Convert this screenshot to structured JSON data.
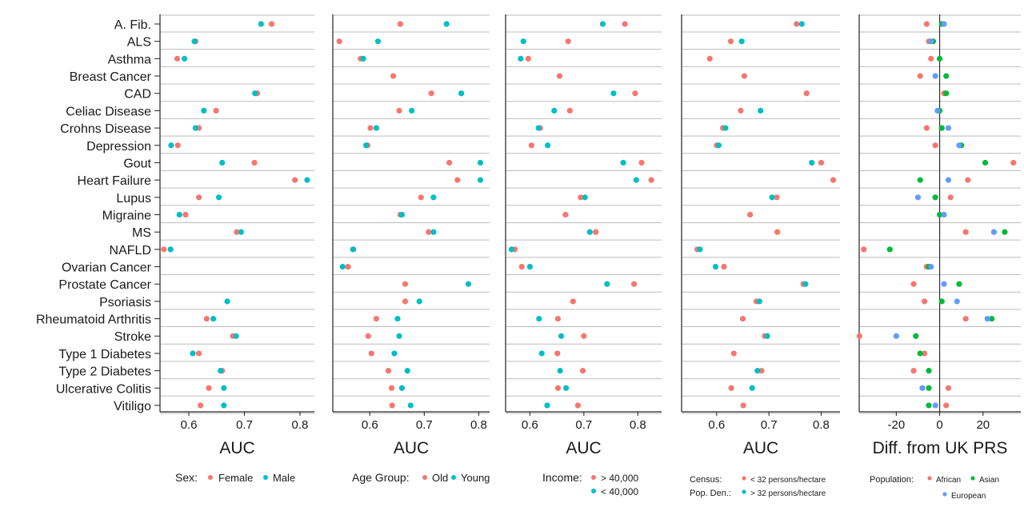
{
  "colors": {
    "red": "#F8766D",
    "teal": "#00BFC4",
    "green": "#00BA38",
    "blue": "#619CFF",
    "grid": "#bdbdbd",
    "axis": "#222222"
  },
  "conditions": [
    "A. Fib.",
    "ALS",
    "Asthma",
    "Breast Cancer",
    "CAD",
    "Celiac Disease",
    "Crohns Disease",
    "Depression",
    "Gout",
    "Heart Failure",
    "Lupus",
    "Migraine",
    "MS",
    "NAFLD",
    "Ovarian Cancer",
    "Prostate Cancer",
    "Psoriasis",
    "Rheumatoid Arthritis",
    "Stroke",
    "Type 1 Diabetes",
    "Type 2 Diabetes",
    "Ulcerative Colitis",
    "Vitiligo"
  ],
  "chart_data": [
    {
      "type": "scatter",
      "xlabel": "AUC",
      "xticks": [
        0.6,
        0.7,
        0.8
      ],
      "xlim": [
        0.548,
        0.826
      ],
      "legend_title": "Sex:",
      "series": [
        {
          "name": "Female",
          "color": "#F8766D",
          "values": [
            0.749,
            0.612,
            0.579,
            null,
            0.723,
            0.649,
            0.618,
            0.58,
            0.718,
            0.791,
            0.618,
            0.594,
            0.686,
            0.555,
            null,
            null,
            null,
            0.632,
            0.679,
            0.618,
            0.66,
            0.636,
            0.621
          ]
        },
        {
          "name": "Male",
          "color": "#00BFC4",
          "values": [
            0.73,
            0.61,
            0.592,
            null,
            0.719,
            0.627,
            0.612,
            0.568,
            0.66,
            0.813,
            0.654,
            0.583,
            0.694,
            0.567,
            null,
            null,
            0.669,
            0.644,
            0.685,
            0.607,
            0.657,
            0.663,
            0.663
          ]
        }
      ]
    },
    {
      "type": "scatter",
      "xlabel": "AUC",
      "xticks": [
        0.6,
        0.7,
        0.8
      ],
      "xlim": [
        0.532,
        0.82
      ],
      "legend_title": "Age Group:",
      "series": [
        {
          "name": "Old",
          "color": "#F8766D",
          "values": [
            0.656,
            0.544,
            0.583,
            0.643,
            0.713,
            0.654,
            0.601,
            0.596,
            0.746,
            0.761,
            0.694,
            0.656,
            0.708,
            0.57,
            0.56,
            0.665,
            0.665,
            0.612,
            0.597,
            0.603,
            0.634,
            0.64,
            0.641
          ]
        },
        {
          "name": "Young",
          "color": "#00BFC4",
          "values": [
            0.741,
            0.615,
            0.588,
            null,
            0.768,
            0.677,
            0.612,
            0.593,
            0.803,
            0.803,
            0.717,
            0.659,
            0.717,
            0.569,
            0.55,
            0.781,
            0.691,
            0.651,
            0.654,
            0.645,
            0.669,
            0.659,
            0.675
          ]
        }
      ]
    },
    {
      "type": "scatter",
      "xlabel": "AUC",
      "xticks": [
        0.6,
        0.7,
        0.8
      ],
      "xlim": [
        0.555,
        0.844
      ],
      "legend_title": "Income:",
      "series": [
        {
          "name": "> 40,000",
          "color": "#F8766D",
          "values": [
            0.776,
            0.671,
            0.597,
            0.655,
            0.795,
            0.674,
            0.619,
            0.603,
            0.807,
            0.825,
            0.694,
            0.666,
            0.722,
            0.572,
            0.585,
            0.793,
            0.68,
            0.652,
            0.7,
            0.651,
            0.698,
            0.652,
            0.689
          ]
        },
        {
          "name": "< 40,000",
          "color": "#00BFC4",
          "values": [
            0.735,
            0.588,
            0.583,
            null,
            0.755,
            0.645,
            0.616,
            0.633,
            0.773,
            0.797,
            0.702,
            null,
            0.711,
            0.566,
            0.6,
            0.743,
            null,
            0.617,
            0.658,
            0.622,
            0.656,
            0.667,
            0.632
          ]
        }
      ]
    },
    {
      "type": "scatter",
      "xlabel": "AUC",
      "xticks": [
        0.6,
        0.7,
        0.8
      ],
      "xlim": [
        0.533,
        0.836
      ],
      "legend_title": "Census: Pop. Den.:",
      "series": [
        {
          "name": "< 32 persons/hectare",
          "color": "#F8766D",
          "values": [
            0.753,
            0.627,
            0.587,
            0.653,
            0.772,
            0.646,
            0.612,
            0.6,
            0.8,
            0.823,
            0.715,
            0.664,
            0.716,
            0.563,
            0.614,
            0.766,
            0.676,
            0.65,
            0.692,
            0.633,
            0.686,
            0.628,
            0.651
          ]
        },
        {
          "name": "> 32 persons/hectare",
          "color": "#00BFC4",
          "values": [
            0.763,
            0.648,
            null,
            null,
            null,
            0.684,
            0.617,
            0.604,
            0.782,
            null,
            0.706,
            null,
            null,
            0.568,
            0.598,
            0.77,
            0.682,
            null,
            0.697,
            null,
            0.678,
            0.668,
            null
          ]
        }
      ]
    },
    {
      "type": "scatter",
      "xlabel": "Diff. from UK PRS",
      "xticks": [
        -20,
        0,
        20
      ],
      "xlim": [
        -37.1,
        37.4
      ],
      "reference_line": 0,
      "legend_title": "Population:",
      "series": [
        {
          "name": "African",
          "color": "#F8766D",
          "values": [
            -6,
            -5,
            -4,
            -9,
            2,
            null,
            -6,
            -2,
            34,
            13,
            5,
            null,
            12,
            -35,
            -6,
            -12,
            -7,
            12,
            -37,
            -7,
            -12,
            4,
            3
          ]
        },
        {
          "name": "Asian",
          "color": "#00BA38",
          "values": [
            1,
            -3,
            0,
            3,
            3,
            0,
            1,
            10,
            21,
            -9,
            -2,
            0,
            30,
            -23,
            -5,
            9,
            1,
            24,
            -11,
            -9,
            -5,
            -5,
            -5
          ]
        },
        {
          "name": "European",
          "color": "#619CFF",
          "values": [
            2,
            -4,
            null,
            -2,
            null,
            -1,
            4,
            9,
            null,
            4,
            -10,
            2,
            25,
            null,
            -4,
            2,
            8,
            22,
            -20,
            null,
            null,
            -8,
            -2
          ]
        }
      ]
    }
  ],
  "legends": [
    {
      "title": "Sex:",
      "items": [
        "Female",
        "Male"
      ]
    },
    {
      "title": "Age Group:",
      "items": [
        "Old",
        "Young"
      ]
    },
    {
      "title": "Income:",
      "items": [
        "> 40,000",
        "< 40,000"
      ]
    },
    {
      "title_lines": [
        "Census:",
        "Pop. Den.:"
      ],
      "items": [
        "< 32 persons/hectare",
        "> 32 persons/hectare"
      ]
    },
    {
      "title": "Population:",
      "items": [
        "African",
        "Asian",
        "European"
      ]
    }
  ]
}
